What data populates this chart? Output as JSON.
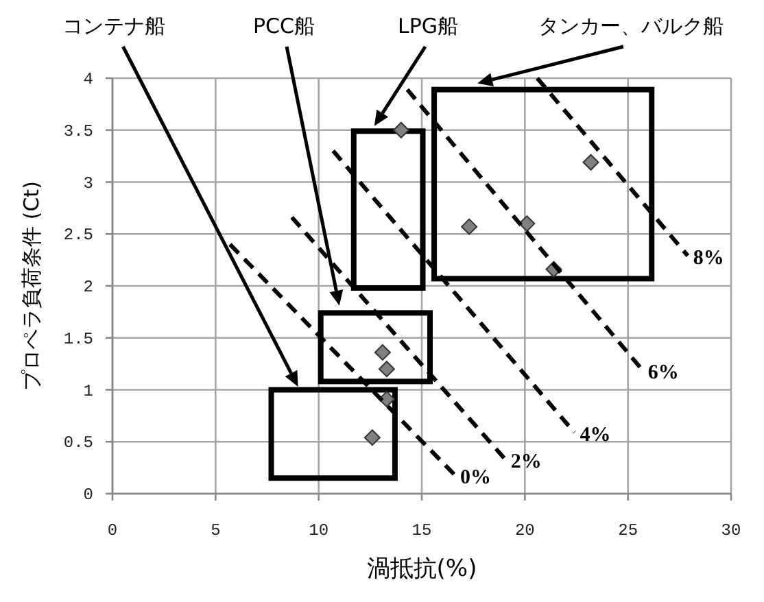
{
  "chart_data": {
    "type": "scatter",
    "xlabel": "渦抵抗(%)",
    "ylabel": "プロペラ負荷条件 (Ct)",
    "xlim": [
      0,
      30
    ],
    "ylim": [
      0,
      4
    ],
    "xticks": [
      0,
      5,
      10,
      15,
      20,
      25,
      30
    ],
    "yticks": [
      0,
      0.5,
      1,
      1.5,
      2,
      2.5,
      3,
      3.5,
      4
    ],
    "grid": true,
    "legend": false,
    "series": [
      {
        "color": "#808080",
        "marker": "diamond",
        "x": [
          14.0,
          13.1,
          13.3,
          13.3,
          12.6,
          23.2,
          17.3,
          20.1,
          21.4
        ],
        "values": [
          3.5,
          1.36,
          1.2,
          0.91,
          0.54,
          3.19,
          2.57,
          2.6,
          2.16
        ]
      },
      {
        "type": "line",
        "name": "0%",
        "color": "#000000",
        "line_style": "dashed",
        "x": [
          5.7,
          16.6
        ],
        "values": [
          2.4,
          0.18
        ]
      },
      {
        "type": "line",
        "name": "2%",
        "color": "#000000",
        "line_style": "dashed",
        "x": [
          8.7,
          19.05
        ],
        "values": [
          2.66,
          0.33
        ]
      },
      {
        "type": "line",
        "name": "4%",
        "color": "#000000",
        "line_style": "dashed",
        "x": [
          10.7,
          22.4
        ],
        "values": [
          3.3,
          0.59
        ]
      },
      {
        "type": "line",
        "name": "6%",
        "color": "#000000",
        "line_style": "dashed",
        "x": [
          14.3,
          25.7
        ],
        "values": [
          3.89,
          1.19
        ]
      },
      {
        "type": "line",
        "name": "8%",
        "color": "#000000",
        "line_style": "dashed",
        "x": [
          20.6,
          27.9
        ],
        "values": [
          4.0,
          2.29
        ]
      }
    ],
    "annotations": [
      "コンテナ船",
      "PCC船",
      "LPG船",
      "タンカー、バルク船"
    ]
  }
}
